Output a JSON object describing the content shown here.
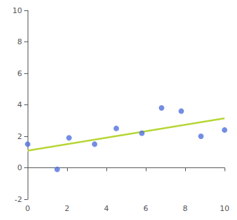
{
  "chart_data": {
    "type": "scatter",
    "series": [
      {
        "type": "scatter",
        "marker": "circle",
        "x": [
          0,
          1.5,
          2.1,
          3.4,
          4.5,
          5.8,
          6.8,
          7.8,
          8.8,
          10
        ],
        "values": [
          1.5,
          -0.1,
          1.9,
          1.5,
          2.5,
          2.2,
          3.8,
          3.6,
          2.0,
          2.4
        ]
      },
      {
        "type": "line",
        "line_style": "solid",
        "x": [
          0,
          10
        ],
        "values": [
          1.0873,
          3.1439
        ]
      }
    ],
    "xlim": [
      0,
      10
    ],
    "xticks": [
      0,
      2,
      4,
      6,
      8,
      10
    ],
    "ylim": [
      -2,
      10
    ],
    "yticks": [
      -2,
      0,
      2,
      4,
      6,
      8,
      10
    ],
    "grid": false
  }
}
